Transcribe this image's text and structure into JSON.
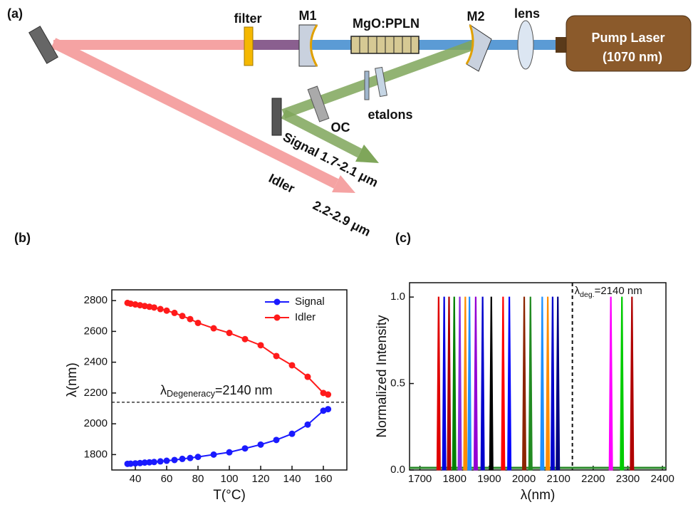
{
  "diagram": {
    "label": "(a)",
    "filter": "filter",
    "m1": "M1",
    "crystal": "MgO:PPLN",
    "m2": "M2",
    "lens": "lens",
    "laser": "Pump Laser",
    "laser_wavelength": "(1070 nm)",
    "etalons": "etalons",
    "oc": "OC",
    "signal": "Signal 1.7-2.1 μm",
    "idler": "Idler",
    "idler_range": "2.2-2.9 μm"
  },
  "chart_data": [
    {
      "panel": "(b)",
      "type": "line",
      "x_label": "T(°C)",
      "y_label": "λ(nm)",
      "x": [
        35,
        37,
        40,
        43,
        46,
        49,
        52,
        56,
        60,
        65,
        70,
        75,
        80,
        90,
        100,
        110,
        120,
        130,
        140,
        150,
        160,
        163
      ],
      "series": [
        {
          "name": "Signal",
          "color": "#1a1aff",
          "values": [
            1740,
            1741,
            1743,
            1745,
            1748,
            1750,
            1752,
            1756,
            1760,
            1765,
            1772,
            1778,
            1785,
            1800,
            1815,
            1840,
            1865,
            1895,
            1935,
            1995,
            2085,
            2095
          ]
        },
        {
          "name": "Idler",
          "color": "#ff1a1a",
          "values": [
            2785,
            2780,
            2775,
            2770,
            2765,
            2760,
            2755,
            2745,
            2735,
            2720,
            2700,
            2680,
            2655,
            2620,
            2590,
            2550,
            2510,
            2440,
            2380,
            2305,
            2200,
            2190
          ]
        }
      ],
      "xlim": [
        25,
        175
      ],
      "xticks": [
        40,
        60,
        80,
        100,
        120,
        140,
        160
      ],
      "ylim": [
        1700,
        2870
      ],
      "yticks": [
        1800,
        2000,
        2200,
        2400,
        2600,
        2800
      ],
      "legend": "upper right",
      "reference_line": {
        "value": 2140,
        "symbol": "λ",
        "subscript": "Degeneracy",
        "text": "=2140 nm"
      }
    },
    {
      "panel": "(c)",
      "type": "spectrum",
      "x_label": "λ(nm)",
      "y_label": "Normalized Intensity",
      "series": [
        {
          "color": "#e00000",
          "x": 1754,
          "value": 1
        },
        {
          "color": "#0000e0",
          "x": 1770,
          "value": 1
        },
        {
          "color": "#b00000",
          "x": 1784,
          "value": 1
        },
        {
          "color": "#008000",
          "x": 1799,
          "value": 1
        },
        {
          "color": "#8a2be2",
          "x": 1815,
          "value": 1
        },
        {
          "color": "#ff8c00",
          "x": 1831,
          "value": 1
        },
        {
          "color": "#1e90ff",
          "x": 1843,
          "value": 1
        },
        {
          "color": "#9400d3",
          "x": 1861,
          "value": 1
        },
        {
          "color": "#0000cd",
          "x": 1881,
          "value": 1
        },
        {
          "color": "#000000",
          "x": 1906,
          "value": 1
        },
        {
          "color": "#ff0000",
          "x": 1940,
          "value": 1
        },
        {
          "color": "#0000ff",
          "x": 1958,
          "value": 1
        },
        {
          "color": "#8b2500",
          "x": 2001,
          "value": 1
        },
        {
          "color": "#228b22",
          "x": 2019,
          "value": 1
        },
        {
          "color": "#1e90ff",
          "x": 2053,
          "value": 1
        },
        {
          "color": "#ff8c00",
          "x": 2069,
          "value": 1
        },
        {
          "color": "#0000cd",
          "x": 2083,
          "value": 1
        },
        {
          "color": "#000080",
          "x": 2098,
          "value": 1
        },
        {
          "color": "#ff00ff",
          "x": 2251,
          "value": 1
        },
        {
          "color": "#00cc00",
          "x": 2283,
          "value": 1
        },
        {
          "color": "#b00000",
          "x": 2312,
          "value": 1
        }
      ],
      "xlim": [
        1670,
        2410
      ],
      "xticks": [
        1700,
        1800,
        1900,
        2000,
        2100,
        2200,
        2300,
        2400
      ],
      "ylim": [
        0,
        1.083
      ],
      "yticks": [
        {
          "value": 0,
          "label": "0.0"
        },
        {
          "value": 0.5,
          "label": "0.5"
        },
        {
          "value": 1,
          "label": "1.0"
        }
      ],
      "reference_line": {
        "value": 2140,
        "symbol": "λ",
        "subscript": "deg.",
        "text": "=2140 nm"
      }
    }
  ]
}
